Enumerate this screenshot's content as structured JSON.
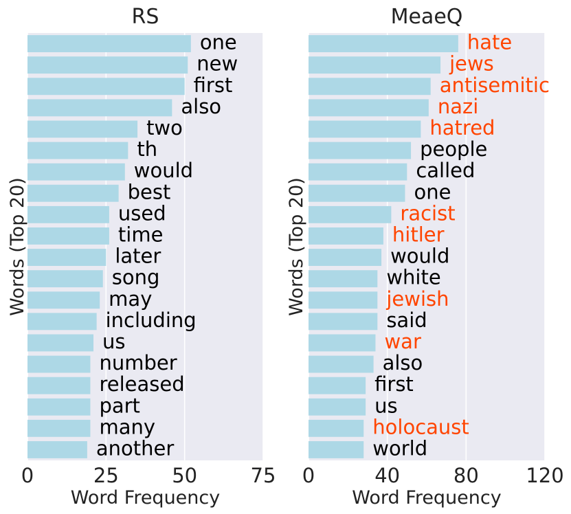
{
  "chart_data": [
    {
      "type": "bar",
      "orientation": "horizontal",
      "title": "RS",
      "xlabel": "Word Frequency",
      "ylabel": "Words (Top 20)",
      "xlim": [
        0,
        75
      ],
      "xticks": [
        0,
        25,
        50,
        75
      ],
      "grid": true,
      "bar_color": "#add8e6",
      "categories": [
        "one",
        "new",
        "first",
        "also",
        "two",
        "th",
        "would",
        "best",
        "used",
        "time",
        "later",
        "song",
        "may",
        "including",
        "us",
        "number",
        "released",
        "part",
        "many",
        "another"
      ],
      "values": [
        52,
        51,
        50,
        46,
        35,
        32,
        31,
        29,
        26,
        26,
        25,
        24,
        23,
        22,
        21,
        20,
        20,
        20,
        20,
        19
      ],
      "highlighted": [],
      "label_color": "#000000",
      "highlight_color": "#ff4500"
    },
    {
      "type": "bar",
      "orientation": "horizontal",
      "title": "MeaeQ",
      "xlabel": "Word Frequency",
      "ylabel": "Words (Top 20)",
      "xlim": [
        0,
        120
      ],
      "xticks": [
        0,
        40,
        80,
        120
      ],
      "grid": true,
      "bar_color": "#add8e6",
      "categories": [
        "hate",
        "jews",
        "antisemitic",
        "nazi",
        "hatred",
        "people",
        "called",
        "one",
        "racist",
        "hitler",
        "would",
        "white",
        "jewish",
        "said",
        "war",
        "also",
        "first",
        "us",
        "holocaust",
        "world"
      ],
      "values": [
        76,
        67,
        62,
        61,
        57,
        52,
        50,
        49,
        42,
        38,
        37,
        35,
        35,
        35,
        34,
        33,
        29,
        29,
        28,
        28
      ],
      "highlighted": [
        "hate",
        "jews",
        "antisemitic",
        "nazi",
        "hatred",
        "racist",
        "hitler",
        "jewish",
        "war",
        "holocaust"
      ],
      "label_color": "#000000",
      "highlight_color": "#ff4500"
    }
  ]
}
